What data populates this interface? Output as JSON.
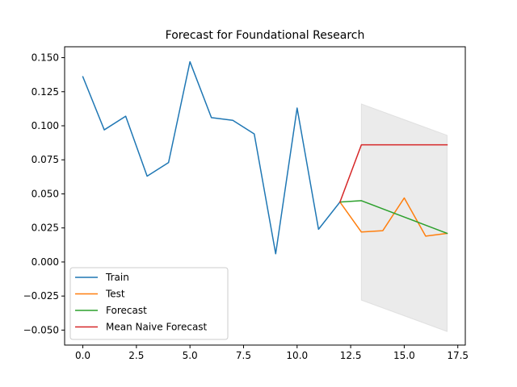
{
  "chart_data": {
    "type": "line",
    "title": "Forecast for Foundational Research",
    "xlabel": "",
    "ylabel": "",
    "xlim": [
      -0.85,
      17.85
    ],
    "ylim": [
      -0.061,
      0.158
    ],
    "x_ticks": [
      0,
      2.5,
      5,
      7.5,
      10,
      12.5,
      15,
      17.5
    ],
    "x_tick_labels": [
      "0.0",
      "2.5",
      "5.0",
      "7.5",
      "10.0",
      "12.5",
      "15.0",
      "17.5"
    ],
    "y_ticks": [
      -0.05,
      -0.025,
      0,
      0.025,
      0.05,
      0.075,
      0.1,
      0.125,
      0.15
    ],
    "y_tick_labels": [
      "−0.050",
      "−0.025",
      "0.000",
      "0.025",
      "0.050",
      "0.075",
      "0.100",
      "0.125",
      "0.150"
    ],
    "grid": false,
    "legend_position": "lower-left",
    "series": [
      {
        "name": "Train",
        "color": "#1f77b4",
        "x": [
          0,
          1,
          2,
          3,
          4,
          5,
          6,
          7,
          8,
          9,
          10,
          11,
          12
        ],
        "y": [
          0.136,
          0.097,
          0.107,
          0.063,
          0.073,
          0.147,
          0.106,
          0.104,
          0.094,
          0.006,
          0.113,
          0.024,
          0.044
        ]
      },
      {
        "name": "Test",
        "color": "#ff7f0e",
        "x": [
          12,
          13,
          14,
          15,
          16,
          17
        ],
        "y": [
          0.044,
          0.022,
          0.023,
          0.047,
          0.019,
          0.021
        ]
      },
      {
        "name": "Forecast",
        "color": "#2ca02c",
        "x": [
          12,
          13,
          14,
          15,
          16,
          17
        ],
        "y": [
          0.044,
          0.045,
          0.039,
          0.033,
          0.027,
          0.021
        ]
      },
      {
        "name": "Mean Naive Forecast",
        "color": "#d62728",
        "x": [
          12,
          13,
          14,
          15,
          16,
          17
        ],
        "y": [
          0.044,
          0.086,
          0.086,
          0.086,
          0.086,
          0.086
        ]
      }
    ],
    "confidence_band": {
      "color": "#d3d3d3",
      "x": [
        13,
        17
      ],
      "upper": [
        0.116,
        0.093
      ],
      "lower": [
        -0.028,
        -0.051
      ]
    }
  }
}
